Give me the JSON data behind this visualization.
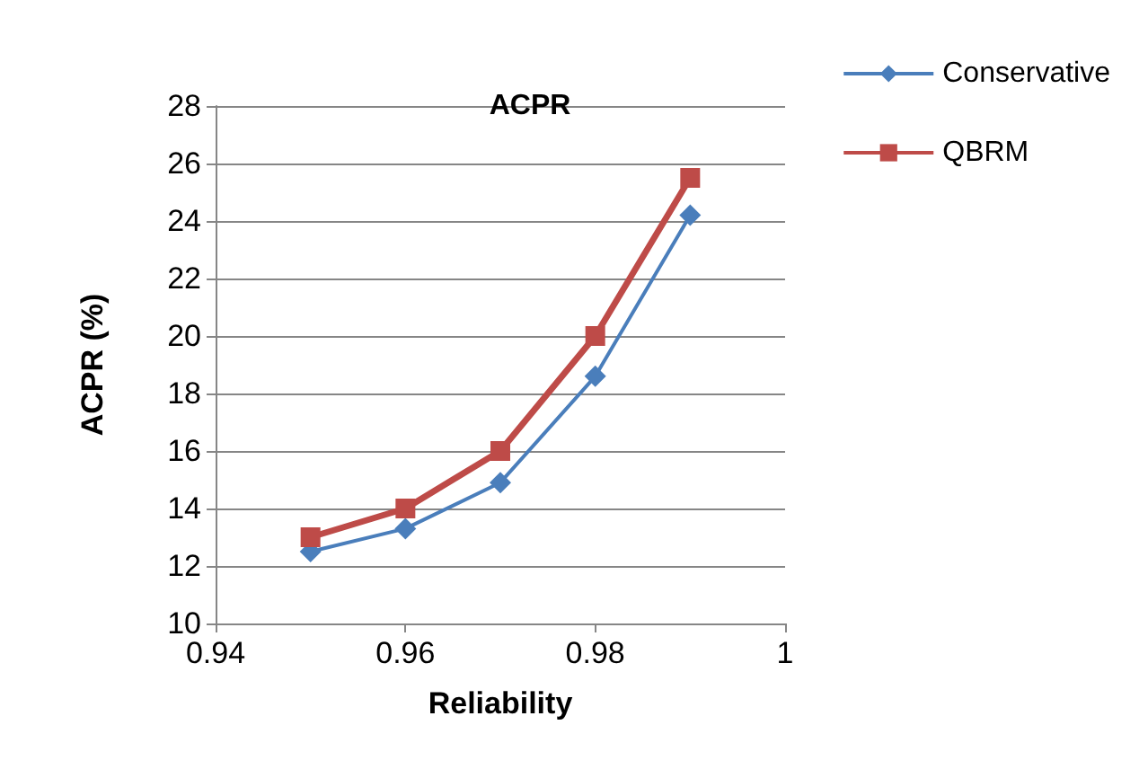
{
  "chart_data": {
    "type": "line",
    "title": "ACPR",
    "xlabel": "Reliability",
    "ylabel": "ACPR (%)",
    "x": [
      0.95,
      0.96,
      0.97,
      0.98,
      0.99
    ],
    "series": [
      {
        "name": "Conservative",
        "color": "#4a7ebb",
        "marker": "diamond",
        "values": [
          12.5,
          13.3,
          14.9,
          18.6,
          24.2
        ]
      },
      {
        "name": "QBRM",
        "color": "#be4b48",
        "marker": "square",
        "values": [
          13.0,
          14.0,
          16.0,
          20.0,
          25.5
        ]
      }
    ],
    "xlim": [
      0.94,
      1
    ],
    "xticks": [
      0.94,
      0.96,
      0.98,
      1
    ],
    "ylim": [
      10,
      28
    ],
    "yticks": [
      10,
      12,
      14,
      16,
      18,
      20,
      22,
      24,
      26,
      28
    ],
    "grid": "y",
    "legend": "top right"
  }
}
